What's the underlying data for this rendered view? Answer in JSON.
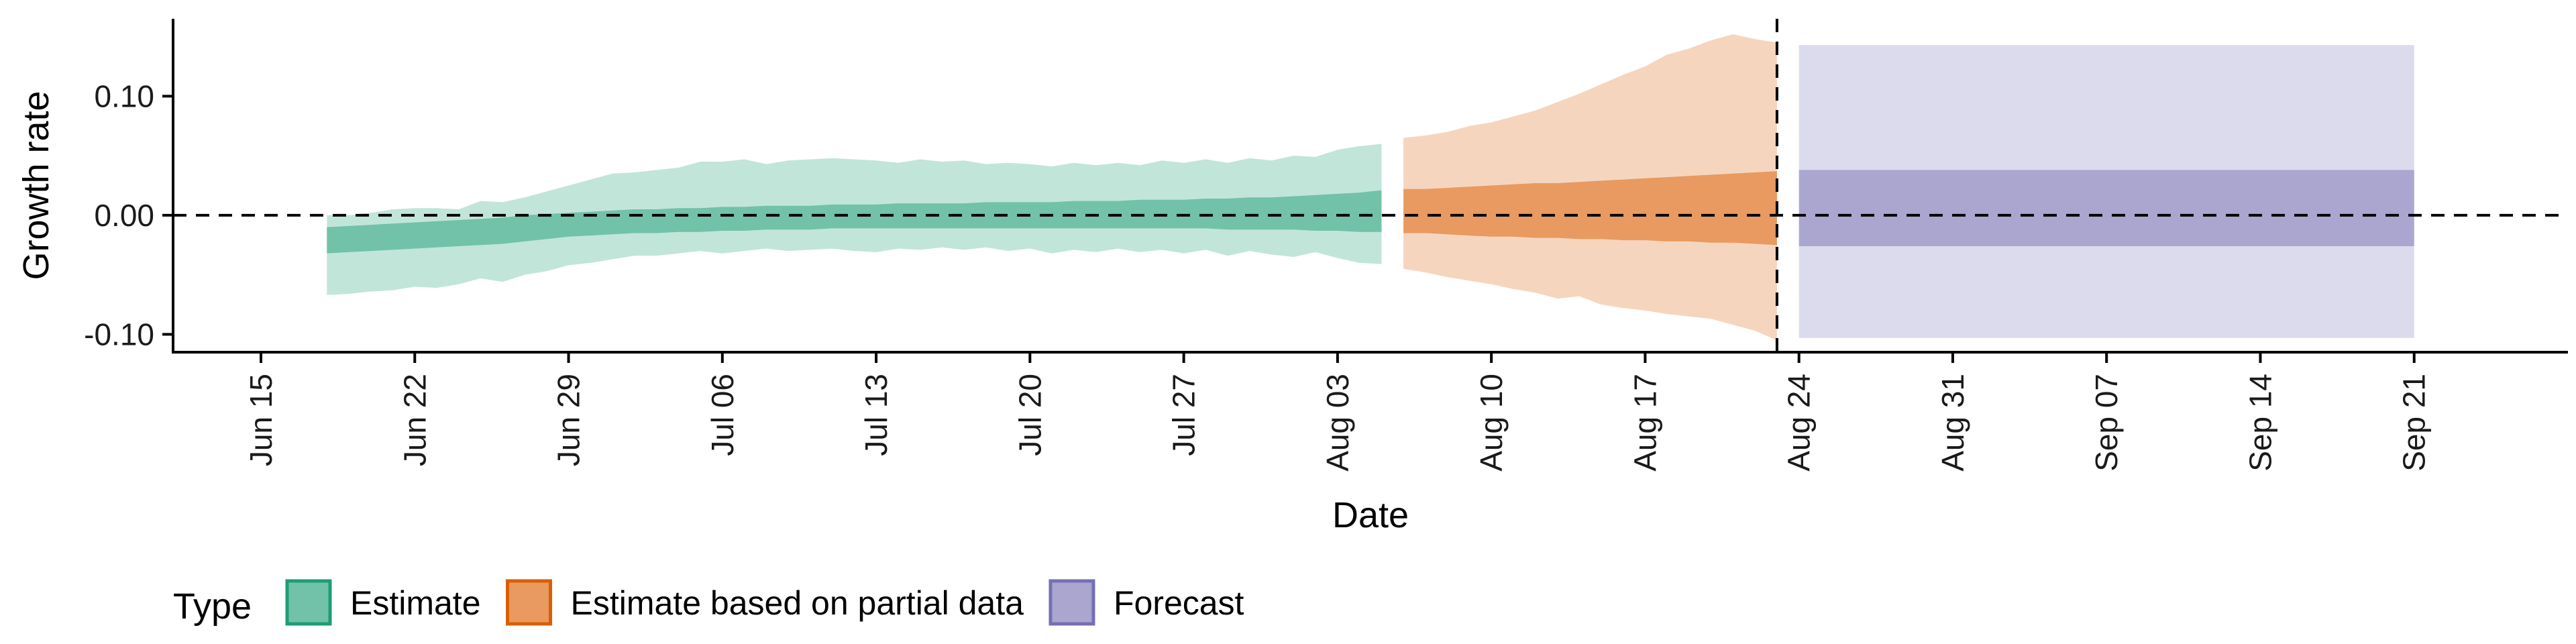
{
  "chart_data": {
    "type": "area",
    "title": "",
    "xlabel": "Date",
    "ylabel": "Growth rate",
    "x_axis_type": "date",
    "xlim": [
      "2020-06-11",
      "2020-09-28"
    ],
    "ylim": [
      -0.115,
      0.165
    ],
    "x_ticks": [
      {
        "date": "2020-06-15",
        "label": "Jun 15"
      },
      {
        "date": "2020-06-22",
        "label": "Jun 22"
      },
      {
        "date": "2020-06-29",
        "label": "Jun 29"
      },
      {
        "date": "2020-07-06",
        "label": "Jul 06"
      },
      {
        "date": "2020-07-13",
        "label": "Jul 13"
      },
      {
        "date": "2020-07-20",
        "label": "Jul 20"
      },
      {
        "date": "2020-07-27",
        "label": "Jul 27"
      },
      {
        "date": "2020-08-03",
        "label": "Aug 03"
      },
      {
        "date": "2020-08-10",
        "label": "Aug 10"
      },
      {
        "date": "2020-08-17",
        "label": "Aug 17"
      },
      {
        "date": "2020-08-24",
        "label": "Aug 24"
      },
      {
        "date": "2020-08-31",
        "label": "Aug 31"
      },
      {
        "date": "2020-09-07",
        "label": "Sep 07"
      },
      {
        "date": "2020-09-14",
        "label": "Sep 14"
      },
      {
        "date": "2020-09-21",
        "label": "Sep 21"
      }
    ],
    "y_ticks": [
      {
        "value": -0.1,
        "label": "-0.10"
      },
      {
        "value": 0.0,
        "label": "0.00"
      },
      {
        "value": 0.1,
        "label": "0.10"
      }
    ],
    "reference_lines": {
      "horizontal_y": 0.0,
      "vertical_date": "2020-08-23"
    },
    "grid": false,
    "legend": {
      "title": "Type",
      "position": "bottom-left",
      "entries": [
        {
          "label": "Estimate",
          "fill": "#71c2a8",
          "border": "#1b9e77"
        },
        {
          "label": "Estimate based on partial data",
          "fill": "#e89a60",
          "border": "#d95f02"
        },
        {
          "label": "Forecast",
          "fill": "#aaa6d0",
          "border": "#7570b3"
        }
      ]
    },
    "series": [
      {
        "type_label": "Estimate",
        "colors": {
          "outer": "#c2e5d9",
          "inner": "#71c2a8"
        },
        "x": [
          "2020-06-18",
          "2020-06-19",
          "2020-06-20",
          "2020-06-21",
          "2020-06-22",
          "2020-06-23",
          "2020-06-24",
          "2020-06-25",
          "2020-06-26",
          "2020-06-27",
          "2020-06-28",
          "2020-06-29",
          "2020-06-30",
          "2020-07-01",
          "2020-07-02",
          "2020-07-03",
          "2020-07-04",
          "2020-07-05",
          "2020-07-06",
          "2020-07-07",
          "2020-07-08",
          "2020-07-09",
          "2020-07-10",
          "2020-07-11",
          "2020-07-12",
          "2020-07-13",
          "2020-07-14",
          "2020-07-15",
          "2020-07-16",
          "2020-07-17",
          "2020-07-18",
          "2020-07-19",
          "2020-07-20",
          "2020-07-21",
          "2020-07-22",
          "2020-07-23",
          "2020-07-24",
          "2020-07-25",
          "2020-07-26",
          "2020-07-27",
          "2020-07-28",
          "2020-07-29",
          "2020-07-30",
          "2020-07-31",
          "2020-08-01",
          "2020-08-02",
          "2020-08-03",
          "2020-08-04",
          "2020-08-05"
        ],
        "lower_90": [
          -0.067,
          -0.066,
          -0.064,
          -0.063,
          -0.06,
          -0.061,
          -0.058,
          -0.053,
          -0.056,
          -0.05,
          -0.047,
          -0.042,
          -0.04,
          -0.037,
          -0.034,
          -0.034,
          -0.032,
          -0.03,
          -0.032,
          -0.03,
          -0.028,
          -0.03,
          -0.029,
          -0.028,
          -0.03,
          -0.031,
          -0.028,
          -0.029,
          -0.027,
          -0.029,
          -0.027,
          -0.03,
          -0.028,
          -0.032,
          -0.029,
          -0.031,
          -0.028,
          -0.031,
          -0.029,
          -0.032,
          -0.029,
          -0.034,
          -0.03,
          -0.033,
          -0.035,
          -0.031,
          -0.036,
          -0.04,
          -0.041
        ],
        "lower_50": [
          -0.032,
          -0.031,
          -0.03,
          -0.029,
          -0.028,
          -0.027,
          -0.026,
          -0.025,
          -0.024,
          -0.022,
          -0.02,
          -0.018,
          -0.017,
          -0.016,
          -0.015,
          -0.015,
          -0.014,
          -0.014,
          -0.013,
          -0.013,
          -0.012,
          -0.012,
          -0.012,
          -0.011,
          -0.011,
          -0.011,
          -0.011,
          -0.011,
          -0.011,
          -0.011,
          -0.011,
          -0.011,
          -0.011,
          -0.011,
          -0.011,
          -0.011,
          -0.011,
          -0.011,
          -0.011,
          -0.011,
          -0.011,
          -0.012,
          -0.012,
          -0.012,
          -0.012,
          -0.013,
          -0.013,
          -0.014,
          -0.014
        ],
        "upper_50": [
          -0.01,
          -0.009,
          -0.008,
          -0.007,
          -0.006,
          -0.005,
          -0.004,
          -0.003,
          -0.002,
          0.0,
          0.001,
          0.002,
          0.003,
          0.004,
          0.005,
          0.005,
          0.006,
          0.006,
          0.007,
          0.007,
          0.008,
          0.008,
          0.008,
          0.009,
          0.009,
          0.009,
          0.01,
          0.01,
          0.01,
          0.01,
          0.011,
          0.011,
          0.011,
          0.011,
          0.012,
          0.012,
          0.012,
          0.013,
          0.013,
          0.013,
          0.014,
          0.014,
          0.015,
          0.015,
          0.016,
          0.017,
          0.018,
          0.019,
          0.021
        ],
        "upper_90": [
          0.0,
          0.0,
          0.002,
          0.005,
          0.006,
          0.006,
          0.005,
          0.012,
          0.011,
          0.015,
          0.02,
          0.025,
          0.03,
          0.035,
          0.036,
          0.038,
          0.04,
          0.045,
          0.045,
          0.047,
          0.043,
          0.046,
          0.047,
          0.048,
          0.047,
          0.046,
          0.044,
          0.047,
          0.045,
          0.046,
          0.043,
          0.044,
          0.043,
          0.041,
          0.044,
          0.042,
          0.044,
          0.042,
          0.046,
          0.044,
          0.047,
          0.044,
          0.048,
          0.046,
          0.05,
          0.049,
          0.055,
          0.058,
          0.06
        ]
      },
      {
        "type_label": "Estimate based on partial data",
        "colors": {
          "outer": "#f6d5bf",
          "inner": "#e89a60"
        },
        "x": [
          "2020-08-06",
          "2020-08-07",
          "2020-08-08",
          "2020-08-09",
          "2020-08-10",
          "2020-08-11",
          "2020-08-12",
          "2020-08-13",
          "2020-08-14",
          "2020-08-15",
          "2020-08-16",
          "2020-08-17",
          "2020-08-18",
          "2020-08-19",
          "2020-08-20",
          "2020-08-21",
          "2020-08-22",
          "2020-08-23"
        ],
        "lower_90": [
          -0.045,
          -0.048,
          -0.052,
          -0.055,
          -0.058,
          -0.062,
          -0.065,
          -0.07,
          -0.068,
          -0.075,
          -0.078,
          -0.08,
          -0.083,
          -0.085,
          -0.087,
          -0.092,
          -0.097,
          -0.105
        ],
        "lower_50": [
          -0.015,
          -0.015,
          -0.016,
          -0.017,
          -0.018,
          -0.018,
          -0.019,
          -0.019,
          -0.02,
          -0.02,
          -0.021,
          -0.021,
          -0.022,
          -0.022,
          -0.023,
          -0.023,
          -0.024,
          -0.025
        ],
        "upper_50": [
          0.022,
          0.022,
          0.023,
          0.024,
          0.025,
          0.026,
          0.027,
          0.027,
          0.028,
          0.029,
          0.03,
          0.031,
          0.032,
          0.033,
          0.034,
          0.035,
          0.036,
          0.037
        ],
        "upper_90": [
          0.065,
          0.067,
          0.07,
          0.075,
          0.078,
          0.083,
          0.088,
          0.095,
          0.102,
          0.11,
          0.118,
          0.125,
          0.135,
          0.14,
          0.147,
          0.152,
          0.148,
          0.145
        ]
      },
      {
        "type_label": "Forecast",
        "colors": {
          "outer": "#dcdaed",
          "inner": "#aaa6d0"
        },
        "x": [
          "2020-08-24",
          "2020-09-21"
        ],
        "lower_90": [
          -0.103,
          -0.103
        ],
        "lower_50": [
          -0.026,
          -0.026
        ],
        "upper_50": [
          0.038,
          0.038
        ],
        "upper_90": [
          0.143,
          0.143
        ]
      }
    ]
  }
}
